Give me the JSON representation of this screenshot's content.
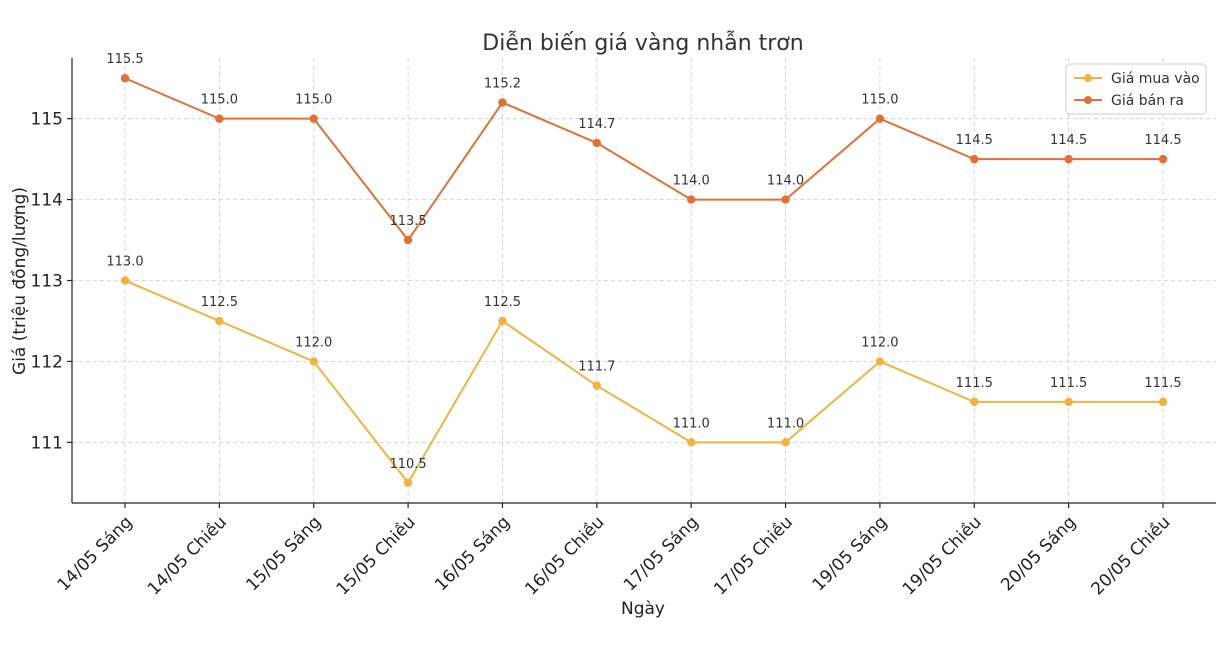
{
  "chart_data": {
    "type": "line",
    "title": "Diễn biến giá vàng nhẫn trơn",
    "xlabel": "Ngày",
    "ylabel": "Giá (triệu đồng/lượng)",
    "categories": [
      "14/05 Sáng",
      "14/05 Chiều",
      "15/05 Sáng",
      "15/05 Chiều",
      "16/05 Sáng",
      "16/05 Chiều",
      "17/05 Sáng",
      "17/05 Chiều",
      "19/05 Sáng",
      "19/05 Chiều",
      "20/05 Sáng",
      "20/05 Chiều"
    ],
    "ylim": [
      110.25,
      115.75
    ],
    "yticks": [
      111,
      112,
      113,
      114,
      115
    ],
    "grid": true,
    "legend_position": "top-right",
    "series": [
      {
        "name": "Giá mua vào",
        "color": "#f0b341",
        "values": [
          113.0,
          112.5,
          112.0,
          110.5,
          112.5,
          111.7,
          111.0,
          111.0,
          112.0,
          111.5,
          111.5,
          111.5
        ]
      },
      {
        "name": "Giá bán ra",
        "color": "#e07035",
        "values": [
          115.5,
          115.0,
          115.0,
          113.5,
          115.2,
          114.7,
          114.0,
          114.0,
          115.0,
          114.5,
          114.5,
          114.5
        ]
      }
    ]
  }
}
